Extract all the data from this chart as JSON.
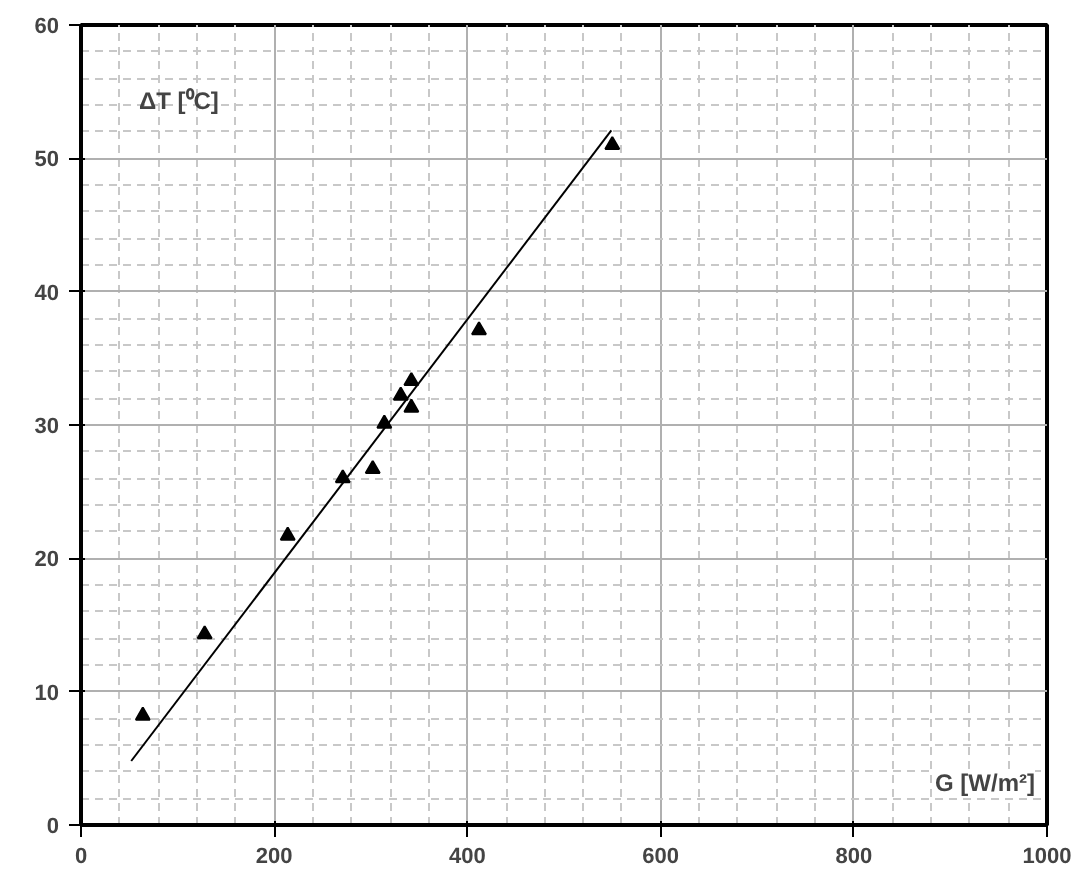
{
  "chart_data": {
    "type": "scatter",
    "xlabel": "G [W/m²]",
    "ylabel": "ΔT [⁰C]",
    "xlim": [
      0,
      1000
    ],
    "ylim": [
      0,
      60
    ],
    "xticks": [
      0,
      200,
      400,
      600,
      800,
      1000
    ],
    "yticks": [
      0,
      10,
      20,
      30,
      40,
      50,
      60
    ],
    "grid": true,
    "marker": "triangle",
    "series": [
      {
        "color": "#000000",
        "x": [
          64,
          128,
          214,
          271,
          302,
          314,
          331,
          342,
          342,
          412,
          550
        ],
        "values": [
          8.2,
          14.3,
          21.7,
          26.0,
          26.7,
          30.1,
          32.2,
          33.3,
          31.3,
          37.1,
          51.0
        ]
      },
      {
        "type": "line",
        "marker": "none",
        "color": "#000000",
        "x": [
          52,
          549
        ],
        "values": [
          4.8,
          52.1
        ]
      }
    ]
  }
}
